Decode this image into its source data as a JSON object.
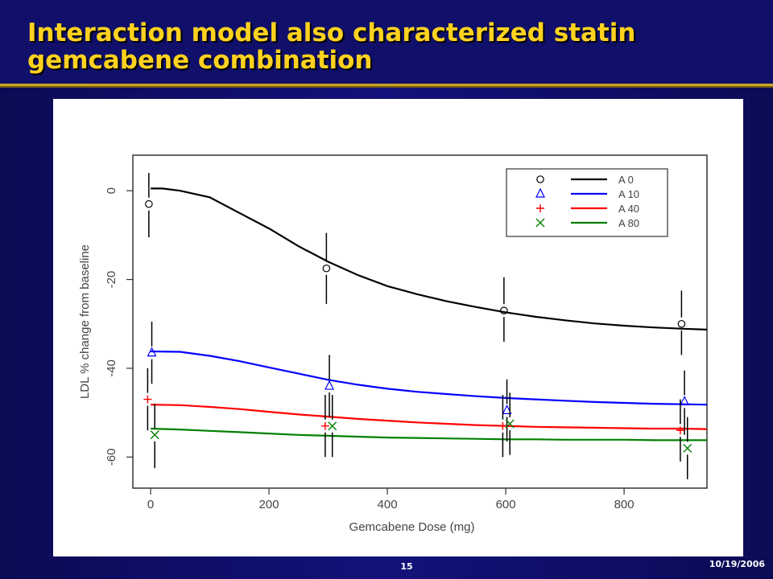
{
  "slide": {
    "title": "Interaction model also characterized statin gemcabene combination",
    "page_number": "15",
    "date": "10/19/2006"
  },
  "colors": {
    "background": "#0b0b55",
    "title_text": "#ffd21f",
    "accent_line": "#c9a227"
  },
  "chart_data": {
    "type": "line",
    "xlabel": "Gemcabene Dose (mg)",
    "ylabel": "LDL % change from baseline",
    "xlim": [
      -30,
      940
    ],
    "ylim": [
      -67,
      8
    ],
    "x_ticks": [
      0,
      200,
      400,
      600,
      800
    ],
    "y_ticks": [
      0,
      -20,
      -40,
      -60
    ],
    "legend_position": "top-right",
    "grid": false,
    "series": [
      {
        "name": "A 0",
        "color": "#000000",
        "marker": "circle",
        "curve_x": [
          0,
          20,
          50,
          100,
          150,
          200,
          250,
          300,
          350,
          400,
          450,
          500,
          550,
          600,
          650,
          700,
          750,
          800,
          850,
          900,
          940
        ],
        "curve_y": [
          0.5,
          0.5,
          0,
          -1.5,
          -5,
          -8.5,
          -12.5,
          -16,
          -19,
          -21.5,
          -23.3,
          -24.9,
          -26.2,
          -27.4,
          -28.4,
          -29.2,
          -29.9,
          -30.4,
          -30.8,
          -31.1,
          -31.3
        ],
        "points": [
          {
            "x": -3,
            "y": -3,
            "lo": -10.5,
            "hi": 4
          },
          {
            "x": 297,
            "y": -17.5,
            "lo": -25.5,
            "hi": -9.5
          },
          {
            "x": 597,
            "y": -27,
            "lo": -34,
            "hi": -19.5
          },
          {
            "x": 897,
            "y": -30,
            "lo": -37,
            "hi": -22.5
          }
        ]
      },
      {
        "name": "A 10",
        "color": "#0000ff",
        "marker": "triangle",
        "curve_x": [
          0,
          50,
          100,
          150,
          200,
          250,
          300,
          350,
          400,
          450,
          500,
          550,
          600,
          650,
          700,
          750,
          800,
          850,
          900,
          940
        ],
        "curve_y": [
          -36.2,
          -36.3,
          -37.2,
          -38.4,
          -39.8,
          -41.2,
          -42.6,
          -43.7,
          -44.6,
          -45.3,
          -45.8,
          -46.3,
          -46.7,
          -47.0,
          -47.3,
          -47.6,
          -47.8,
          -48.0,
          -48.1,
          -48.2
        ],
        "points": [
          {
            "x": 2,
            "y": -36.5,
            "lo": -43.5,
            "hi": -29.5
          },
          {
            "x": 302,
            "y": -44,
            "lo": -51,
            "hi": -37
          },
          {
            "x": 602,
            "y": -49.5,
            "lo": -56.5,
            "hi": -42.5
          },
          {
            "x": 902,
            "y": -47.5,
            "lo": -55,
            "hi": -40.5
          }
        ]
      },
      {
        "name": "A 40",
        "color": "#ff0000",
        "marker": "plus",
        "curve_x": [
          0,
          50,
          100,
          150,
          200,
          250,
          300,
          350,
          400,
          450,
          500,
          550,
          600,
          650,
          700,
          750,
          800,
          850,
          900,
          940
        ],
        "curve_y": [
          -48.2,
          -48.3,
          -48.7,
          -49.2,
          -49.8,
          -50.4,
          -50.9,
          -51.4,
          -51.8,
          -52.2,
          -52.5,
          -52.8,
          -53.0,
          -53.2,
          -53.3,
          -53.4,
          -53.5,
          -53.6,
          -53.6,
          -53.7
        ],
        "points": [
          {
            "x": -5,
            "y": -47,
            "lo": -54,
            "hi": -40
          },
          {
            "x": 295,
            "y": -53,
            "lo": -60,
            "hi": -46
          },
          {
            "x": 595,
            "y": -53,
            "lo": -60,
            "hi": -46
          },
          {
            "x": 895,
            "y": -54,
            "lo": -61,
            "hi": -47
          }
        ]
      },
      {
        "name": "A 80",
        "color": "#008000",
        "marker": "x",
        "curve_x": [
          0,
          50,
          100,
          150,
          200,
          250,
          300,
          350,
          400,
          450,
          500,
          550,
          600,
          650,
          700,
          750,
          800,
          850,
          900,
          940
        ],
        "curve_y": [
          -53.6,
          -53.8,
          -54.1,
          -54.4,
          -54.7,
          -55.0,
          -55.2,
          -55.4,
          -55.6,
          -55.7,
          -55.8,
          -55.9,
          -56.0,
          -56.0,
          -56.1,
          -56.1,
          -56.1,
          -56.2,
          -56.2,
          -56.2
        ],
        "points": [
          {
            "x": 7,
            "y": -55,
            "lo": -62.5,
            "hi": -48
          },
          {
            "x": 307,
            "y": -53,
            "lo": -60,
            "hi": -46
          },
          {
            "x": 607,
            "y": -52.5,
            "lo": -59.5,
            "hi": -45.5
          },
          {
            "x": 907,
            "y": -58,
            "lo": -65,
            "hi": -51
          }
        ]
      }
    ]
  }
}
